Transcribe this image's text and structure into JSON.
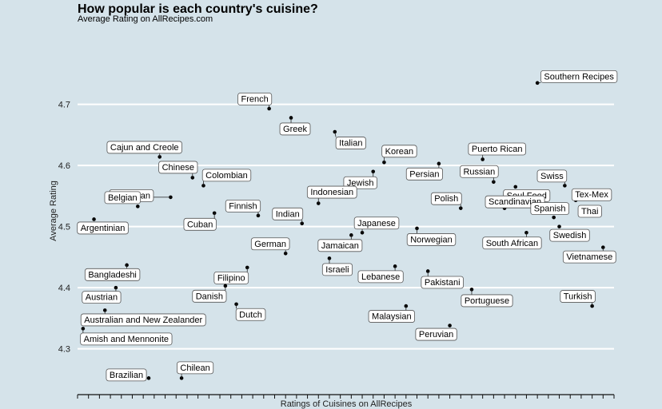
{
  "chart_data": {
    "type": "scatter",
    "title": "How popular is each country's cuisine?",
    "subtitle": "Average Rating on AllRecipes.com",
    "xlabel": "Ratings of Cuisines on AllRecipes",
    "ylabel": "Average Rating",
    "ylim": [
      4.225,
      4.825
    ],
    "xlim": [
      0,
      49
    ],
    "x_tick_count": 49,
    "y_ticks": [
      4.3,
      4.4,
      4.5,
      4.6,
      4.7
    ],
    "y_tick_labels": [
      "4.3",
      "4.4",
      "4.5",
      "4.6",
      "4.7"
    ],
    "grid": "horizontal",
    "label_style": "boxed labels",
    "points": [
      {
        "label": "Southern Recipes",
        "x": 42,
        "y": 4.735
      },
      {
        "label": "French",
        "x": 17.5,
        "y": 4.693
      },
      {
        "label": "Greek",
        "x": 19.5,
        "y": 4.678
      },
      {
        "label": "Italian",
        "x": 23.5,
        "y": 4.655
      },
      {
        "label": "Cajun and Creole",
        "x": 7.5,
        "y": 4.614
      },
      {
        "label": "Korean",
        "x": 28,
        "y": 4.605
      },
      {
        "label": "Persian",
        "x": 33,
        "y": 4.603
      },
      {
        "label": "Puerto Rican",
        "x": 37,
        "y": 4.61
      },
      {
        "label": "Chinese",
        "x": 10.5,
        "y": 4.58
      },
      {
        "label": "Jewish",
        "x": 27,
        "y": 4.59
      },
      {
        "label": "Russian",
        "x": 38,
        "y": 4.573
      },
      {
        "label": "Colombian",
        "x": 11.5,
        "y": 4.567
      },
      {
        "label": "Soul Food",
        "x": 40,
        "y": 4.565
      },
      {
        "label": "Swiss",
        "x": 44.5,
        "y": 4.567
      },
      {
        "label": "Canadian",
        "x": 8.5,
        "y": 4.548
      },
      {
        "label": "Tex-Mex",
        "x": 45.5,
        "y": 4.543
      },
      {
        "label": "Indonesian",
        "x": 22,
        "y": 4.538
      },
      {
        "label": "Polish",
        "x": 35,
        "y": 4.53
      },
      {
        "label": "Belgian",
        "x": 5.5,
        "y": 4.533
      },
      {
        "label": "Finnish",
        "x": 16.5,
        "y": 4.518
      },
      {
        "label": "Cuban",
        "x": 12.5,
        "y": 4.522
      },
      {
        "label": "Scandinavian",
        "x": 39,
        "y": 4.53
      },
      {
        "label": "Spanish",
        "x": 43.5,
        "y": 4.515
      },
      {
        "label": "Thai",
        "x": 46.5,
        "y": 4.525
      },
      {
        "label": "Indian",
        "x": 20.5,
        "y": 4.505
      },
      {
        "label": "Argentinian",
        "x": 1.5,
        "y": 4.512
      },
      {
        "label": "Norwegian",
        "x": 31,
        "y": 4.497
      },
      {
        "label": "Japanese",
        "x": 26,
        "y": 4.49
      },
      {
        "label": "Swedish",
        "x": 44,
        "y": 4.5
      },
      {
        "label": "South African",
        "x": 41,
        "y": 4.49
      },
      {
        "label": "Jamaican",
        "x": 25,
        "y": 4.486
      },
      {
        "label": "German",
        "x": 19,
        "y": 4.456
      },
      {
        "label": "Vietnamese",
        "x": 48,
        "y": 4.466
      },
      {
        "label": "Israeli",
        "x": 23,
        "y": 4.448
      },
      {
        "label": "Lebanese",
        "x": 29,
        "y": 4.435
      },
      {
        "label": "Bangladeshi",
        "x": 4.5,
        "y": 4.437
      },
      {
        "label": "Filipino",
        "x": 15.5,
        "y": 4.433
      },
      {
        "label": "Pakistani",
        "x": 32,
        "y": 4.427
      },
      {
        "label": "Austrian",
        "x": 3.5,
        "y": 4.4
      },
      {
        "label": "Danish",
        "x": 13.5,
        "y": 4.403
      },
      {
        "label": "Portuguese",
        "x": 36,
        "y": 4.397
      },
      {
        "label": "Dutch",
        "x": 14.5,
        "y": 4.373
      },
      {
        "label": "Malaysian",
        "x": 30,
        "y": 4.37
      },
      {
        "label": "Turkish",
        "x": 47,
        "y": 4.37
      },
      {
        "label": "Australian and New Zealander",
        "x": 2.5,
        "y": 4.363
      },
      {
        "label": "Amish and Mennonite",
        "x": 0.5,
        "y": 4.333
      },
      {
        "label": "Peruvian",
        "x": 34,
        "y": 4.338
      },
      {
        "label": "Chilean",
        "x": 9.5,
        "y": 4.252
      },
      {
        "label": "Brazilian",
        "x": 6.5,
        "y": 4.252
      }
    ]
  }
}
